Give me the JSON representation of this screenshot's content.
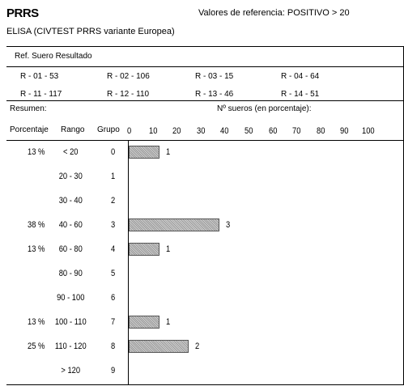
{
  "header": {
    "title": "PRRS",
    "reference": "Valores de referencia: POSITIVO > 20",
    "subtitle": "ELISA (CIVTEST PRRS variante Europea)"
  },
  "sample_table": {
    "heading": "Ref. Suero Resultado",
    "row1": [
      "R - 01 - 53",
      "R - 02 - 106",
      "R - 03 - 15",
      "R - 04 - 64"
    ],
    "row2": [
      "R - 11 - 117",
      "R - 12 - 110",
      "R - 13 - 46",
      "R - 14 - 51"
    ]
  },
  "summary": {
    "label": "Resumen:",
    "chart_caption": "Nº sueros (en porcentaje):",
    "col_percentage": "Porcentaje",
    "col_range": "Rango",
    "col_group": "Grupo"
  },
  "chart_data": {
    "type": "bar",
    "orientation": "horizontal",
    "xticks": [
      "0",
      "10",
      "20",
      "30",
      "40",
      "50",
      "60",
      "70",
      "80",
      "90",
      "100"
    ],
    "xlim": [
      0,
      100
    ],
    "rows": [
      {
        "percentage": "13 %",
        "range": "< 20",
        "group": "0",
        "value": 13,
        "count": "1"
      },
      {
        "percentage": "",
        "range": "20 - 30",
        "group": "1",
        "value": 0,
        "count": ""
      },
      {
        "percentage": "",
        "range": "30 - 40",
        "group": "2",
        "value": 0,
        "count": ""
      },
      {
        "percentage": "38 %",
        "range": "40 - 60",
        "group": "3",
        "value": 38,
        "count": "3"
      },
      {
        "percentage": "13 %",
        "range": "60 - 80",
        "group": "4",
        "value": 13,
        "count": "1"
      },
      {
        "percentage": "",
        "range": "80 - 90",
        "group": "5",
        "value": 0,
        "count": ""
      },
      {
        "percentage": "",
        "range": "90 - 100",
        "group": "6",
        "value": 0,
        "count": ""
      },
      {
        "percentage": "13 %",
        "range": "100 - 110",
        "group": "7",
        "value": 13,
        "count": "1"
      },
      {
        "percentage": "25 %",
        "range": "110 - 120",
        "group": "8",
        "value": 25,
        "count": "2"
      },
      {
        "percentage": "",
        "range": "> 120",
        "group": "9",
        "value": 0,
        "count": ""
      }
    ]
  }
}
